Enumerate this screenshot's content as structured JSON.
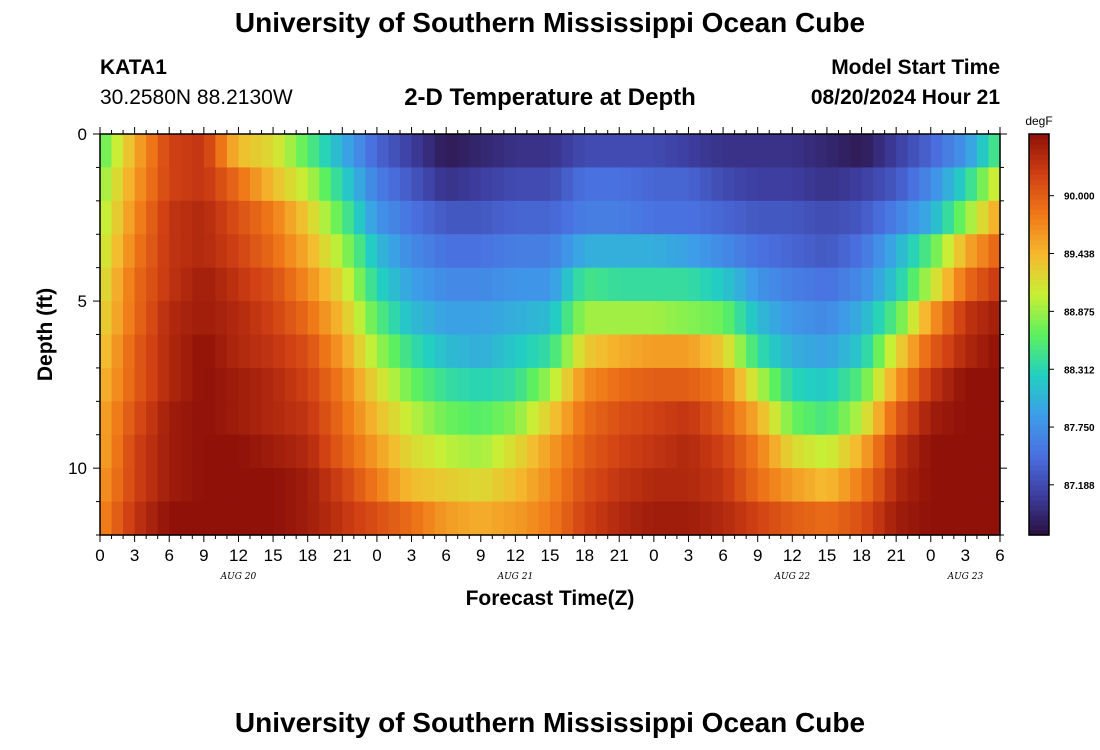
{
  "header": {
    "title": "University of Southern Mississippi Ocean Cube",
    "station_name": "KATA1",
    "station_coords": "30.2580N  88.2130W",
    "subtitle": "2-D Temperature at Depth",
    "model_start_label": "Model Start Time",
    "model_start_value": "08/20/2024 Hour 21"
  },
  "footer": {
    "title": "University of Southern Mississippi Ocean Cube"
  },
  "colors": {
    "colormap": [
      "#2a0f3d",
      "#3d3d9e",
      "#4a70e0",
      "#3d9de8",
      "#22d0c0",
      "#5cf060",
      "#c8ef35",
      "#f5b92e",
      "#f07818",
      "#d04014",
      "#8f1108"
    ]
  },
  "chart_data": {
    "type": "heatmap",
    "title": "2-D Temperature at Depth",
    "xlabel": "Forecast Time(Z)",
    "ylabel": "Depth (ft)",
    "x_tick_labels": [
      "0",
      "3",
      "6",
      "9",
      "12",
      "15",
      "18",
      "21",
      "0",
      "3",
      "6",
      "9",
      "12",
      "15",
      "18",
      "21",
      "0",
      "3",
      "6",
      "9",
      "12",
      "15",
      "18",
      "21",
      "0",
      "3",
      "6"
    ],
    "date_labels": [
      {
        "label": "AUG 20",
        "hour": 12
      },
      {
        "label": "AUG 21",
        "hour": 36
      },
      {
        "label": "AUG 22",
        "hour": 60
      },
      {
        "label": "AUG 23",
        "hour": 75
      }
    ],
    "x_range_hours": [
      0,
      78
    ],
    "y_range_ft": [
      0,
      12
    ],
    "y_tick_labels": [
      "0",
      "5",
      "10"
    ],
    "y_tick_values": [
      0,
      5,
      10
    ],
    "depth_levels_ft": [
      0.5,
      1.5,
      2.5,
      3.5,
      4.5,
      5.5,
      6.5,
      7.5,
      8.5,
      9.5,
      10.5,
      11.5
    ],
    "colorbar": {
      "unit": "degF",
      "range": [
        86.7,
        90.6
      ],
      "ticks": [
        "90.000",
        "89.438",
        "88.875",
        "88.312",
        "87.750",
        "87.188"
      ],
      "tick_values": [
        90.0,
        89.438,
        88.875,
        88.312,
        87.75,
        87.188
      ]
    },
    "anchor_hours": [
      0,
      3,
      6,
      9,
      12,
      15,
      18,
      21,
      24,
      27,
      30,
      33,
      36,
      39,
      42,
      45,
      48,
      51,
      54,
      57,
      60,
      63,
      66,
      69,
      72,
      75,
      78
    ],
    "temperature_degF": [
      [
        88.6,
        89.5,
        90.2,
        90.3,
        89.4,
        89.2,
        88.6,
        88.0,
        87.4,
        87.1,
        86.8,
        86.9,
        87.0,
        87.0,
        87.2,
        87.2,
        87.2,
        87.1,
        87.0,
        87.0,
        87.0,
        86.9,
        86.8,
        87.1,
        87.4,
        87.8,
        88.6
      ],
      [
        88.8,
        89.6,
        90.2,
        90.3,
        89.9,
        89.4,
        89.0,
        88.3,
        87.6,
        87.3,
        87.0,
        87.1,
        87.2,
        87.2,
        87.5,
        87.5,
        87.4,
        87.4,
        87.2,
        87.1,
        87.1,
        87.0,
        87.1,
        87.3,
        87.7,
        88.3,
        89.2
      ],
      [
        88.9,
        89.7,
        90.3,
        90.4,
        90.1,
        89.8,
        89.3,
        88.6,
        87.8,
        87.5,
        87.3,
        87.3,
        87.4,
        87.4,
        87.6,
        87.6,
        87.5,
        87.5,
        87.4,
        87.3,
        87.3,
        87.2,
        87.3,
        87.6,
        88.0,
        88.8,
        89.6
      ],
      [
        89.0,
        89.8,
        90.3,
        90.4,
        90.2,
        89.9,
        89.5,
        88.9,
        88.1,
        87.7,
        87.5,
        87.5,
        87.6,
        87.6,
        88.0,
        88.0,
        88.0,
        87.9,
        87.7,
        87.5,
        87.4,
        87.3,
        87.5,
        88.0,
        88.6,
        89.5,
        90.0
      ],
      [
        89.1,
        89.9,
        90.3,
        90.5,
        90.3,
        90.1,
        89.7,
        89.2,
        88.3,
        87.9,
        87.7,
        87.7,
        87.8,
        87.8,
        88.5,
        88.4,
        88.4,
        88.4,
        88.2,
        87.8,
        87.6,
        87.5,
        87.7,
        88.2,
        89.0,
        89.9,
        90.3
      ],
      [
        89.2,
        89.9,
        90.4,
        90.5,
        90.4,
        90.2,
        89.9,
        89.4,
        88.6,
        88.1,
        87.9,
        87.9,
        88.0,
        88.1,
        88.9,
        88.9,
        88.9,
        88.8,
        88.7,
        88.1,
        87.8,
        87.7,
        88.0,
        88.6,
        89.6,
        90.3,
        90.5
      ],
      [
        89.3,
        90.0,
        90.4,
        90.6,
        90.4,
        90.3,
        90.1,
        89.6,
        88.9,
        88.4,
        88.1,
        88.0,
        88.2,
        88.4,
        89.3,
        89.5,
        89.6,
        89.6,
        89.3,
        88.4,
        88.0,
        87.9,
        88.2,
        89.2,
        90.0,
        90.4,
        90.6
      ],
      [
        89.4,
        90.0,
        90.4,
        90.6,
        90.5,
        90.4,
        90.2,
        89.8,
        89.2,
        88.7,
        88.4,
        88.3,
        88.4,
        88.9,
        89.7,
        89.9,
        90.0,
        90.0,
        89.8,
        89.0,
        88.3,
        88.2,
        88.6,
        89.6,
        90.3,
        90.6,
        90.6
      ],
      [
        89.5,
        90.1,
        90.5,
        90.6,
        90.5,
        90.4,
        90.3,
        89.9,
        89.4,
        89.0,
        88.7,
        88.6,
        88.8,
        89.3,
        89.9,
        90.1,
        90.2,
        90.3,
        90.0,
        89.5,
        88.7,
        88.5,
        89.0,
        90.0,
        90.5,
        90.6,
        90.6
      ],
      [
        89.5,
        90.2,
        90.5,
        90.6,
        90.6,
        90.5,
        90.4,
        90.0,
        89.6,
        89.2,
        89.0,
        88.9,
        89.2,
        89.6,
        90.0,
        90.2,
        90.3,
        90.4,
        90.2,
        89.8,
        89.2,
        89.0,
        89.5,
        90.3,
        90.6,
        90.6,
        90.6
      ],
      [
        89.6,
        90.2,
        90.5,
        90.6,
        90.6,
        90.6,
        90.5,
        90.2,
        89.8,
        89.4,
        89.3,
        89.2,
        89.4,
        89.7,
        90.1,
        90.3,
        90.4,
        90.4,
        90.3,
        89.9,
        89.6,
        89.4,
        89.8,
        90.4,
        90.6,
        90.6,
        90.6
      ],
      [
        89.7,
        90.3,
        90.6,
        90.6,
        90.6,
        90.6,
        90.5,
        90.3,
        90.1,
        89.9,
        89.6,
        89.5,
        89.6,
        89.8,
        90.2,
        90.4,
        90.5,
        90.5,
        90.4,
        90.2,
        90.0,
        89.9,
        90.1,
        90.5,
        90.6,
        90.6,
        90.6
      ]
    ]
  }
}
